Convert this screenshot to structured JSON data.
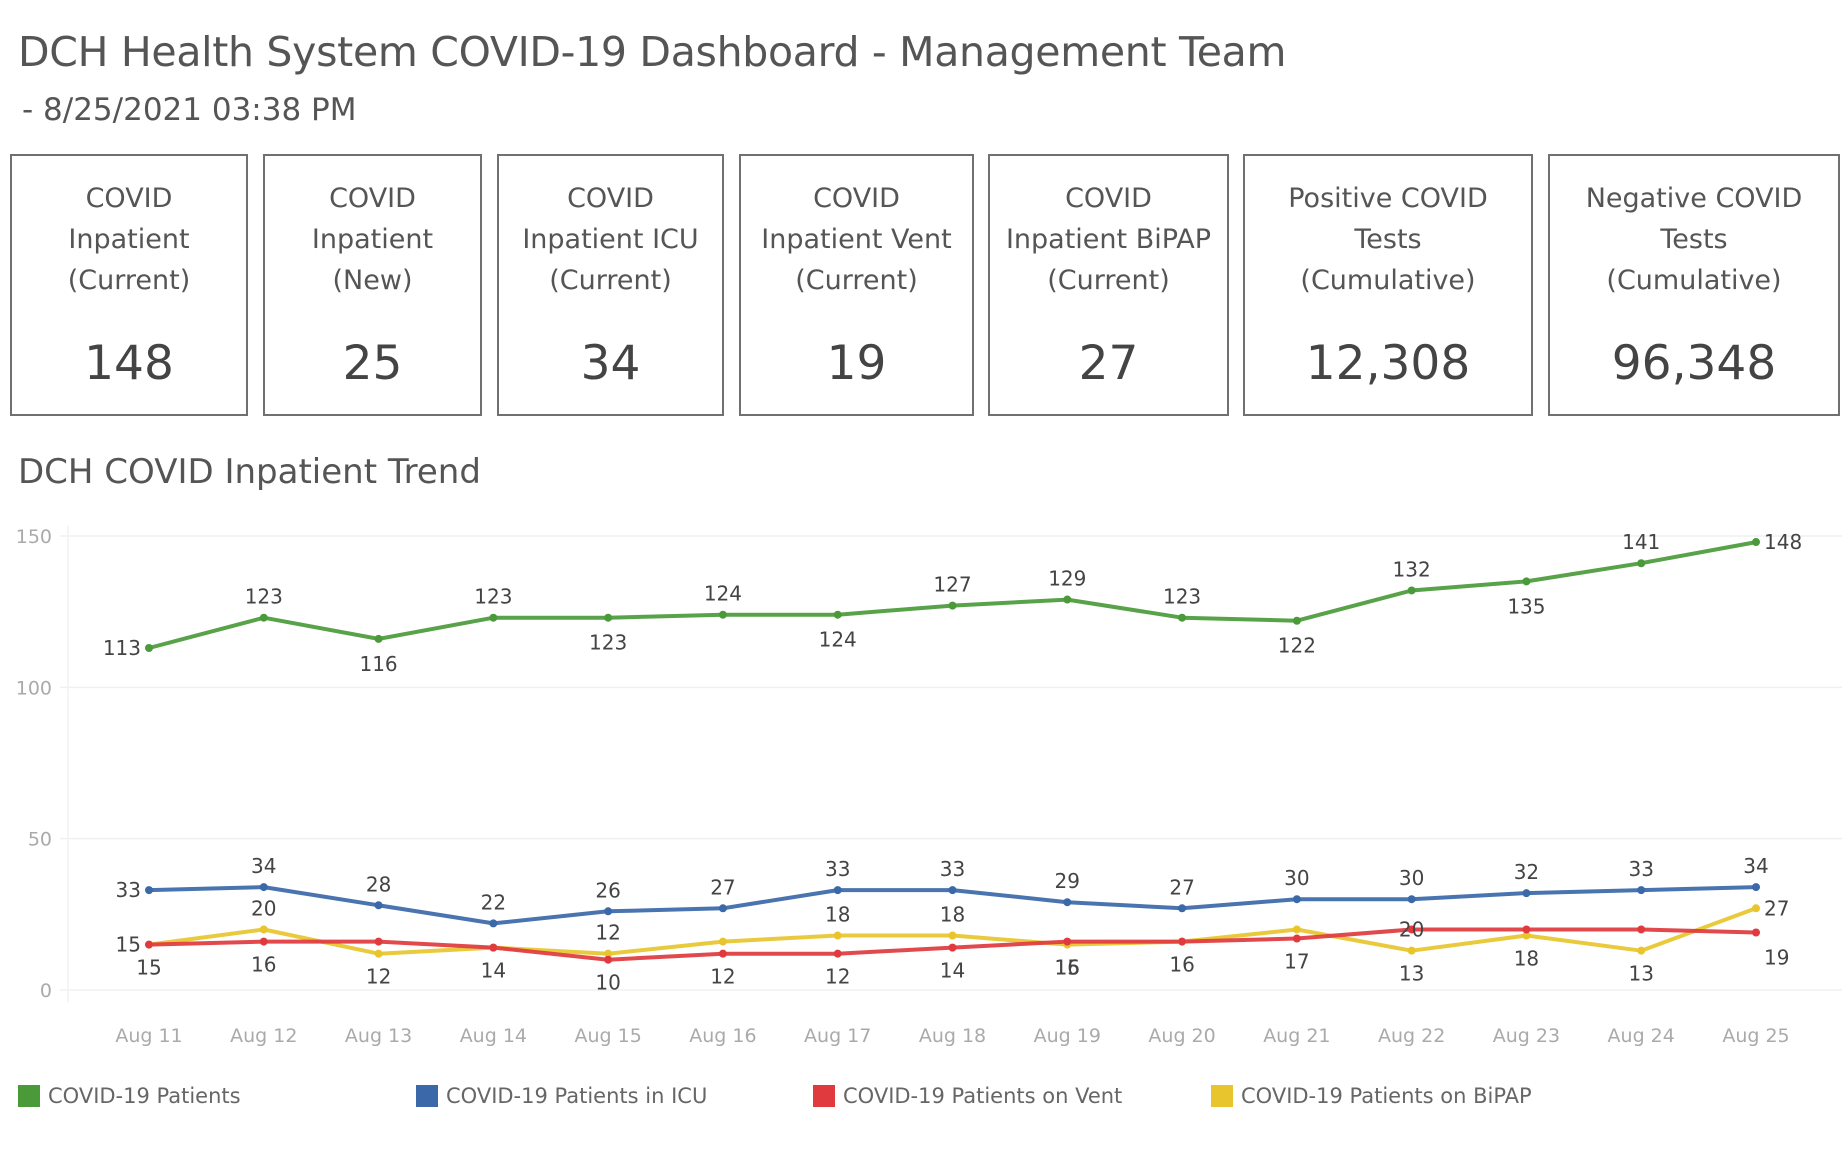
{
  "header": {
    "title": "DCH Health System COVID-19 Dashboard - Management Team",
    "subtitle": "- 8/25/2021 03:38 PM"
  },
  "kpis": [
    {
      "label": "COVID\nInpatient\n(Current)",
      "value": "148"
    },
    {
      "label": "COVID\nInpatient\n(New)",
      "value": "25"
    },
    {
      "label": "COVID\nInpatient ICU\n(Current)",
      "value": "34"
    },
    {
      "label": "COVID\nInpatient Vent\n(Current)",
      "value": "19"
    },
    {
      "label": "COVID\nInpatient BiPAP\n(Current)",
      "value": "27"
    },
    {
      "label": "Positive COVID\nTests\n(Cumulative)",
      "value": "12,308"
    },
    {
      "label": "Negative COVID\nTests\n(Cumulative)",
      "value": "96,348"
    }
  ],
  "chart_data": {
    "type": "line",
    "title": "DCH COVID Inpatient Trend",
    "xlabel": "",
    "ylabel": "",
    "ylim": [
      0,
      150
    ],
    "yticks": [
      0,
      50,
      100,
      150
    ],
    "grid": true,
    "legend_position": "bottom",
    "x": [
      "Aug 11",
      "Aug 12",
      "Aug 13",
      "Aug 14",
      "Aug 15",
      "Aug 16",
      "Aug 17",
      "Aug 18",
      "Aug 19",
      "Aug 20",
      "Aug 21",
      "Aug 22",
      "Aug 23",
      "Aug 24",
      "Aug 25"
    ],
    "series": [
      {
        "name": "COVID-19 Patients",
        "color": "#4a9a3a",
        "values": [
          113,
          123,
          116,
          123,
          123,
          124,
          124,
          127,
          129,
          123,
          122,
          132,
          135,
          141,
          148
        ],
        "labeled": [
          true,
          true,
          true,
          true,
          true,
          true,
          true,
          true,
          true,
          true,
          true,
          true,
          true,
          true,
          true
        ]
      },
      {
        "name": "COVID-19 Patients in ICU",
        "color": "#3a68a8",
        "values": [
          33,
          34,
          28,
          22,
          26,
          27,
          33,
          33,
          29,
          27,
          30,
          30,
          32,
          33,
          34
        ],
        "labeled": [
          true,
          true,
          true,
          true,
          true,
          true,
          true,
          true,
          true,
          true,
          true,
          true,
          true,
          true,
          true
        ]
      },
      {
        "name": "COVID-19 Patients on Vent",
        "color": "#e0393e",
        "values": [
          15,
          16,
          16,
          14,
          10,
          12,
          12,
          14,
          16,
          16,
          17,
          20,
          20,
          20,
          19
        ],
        "labeled": [
          true,
          true,
          false,
          true,
          true,
          true,
          true,
          true,
          true,
          true,
          true,
          true,
          false,
          false,
          true
        ]
      },
      {
        "name": "COVID-19 Patients on BiPAP",
        "color": "#e8c52c",
        "values": [
          15,
          20,
          12,
          14,
          12,
          16,
          18,
          18,
          15,
          16,
          20,
          13,
          18,
          13,
          27
        ],
        "labeled": [
          true,
          true,
          true,
          false,
          true,
          false,
          true,
          true,
          true,
          false,
          false,
          true,
          true,
          true,
          true
        ]
      }
    ]
  }
}
